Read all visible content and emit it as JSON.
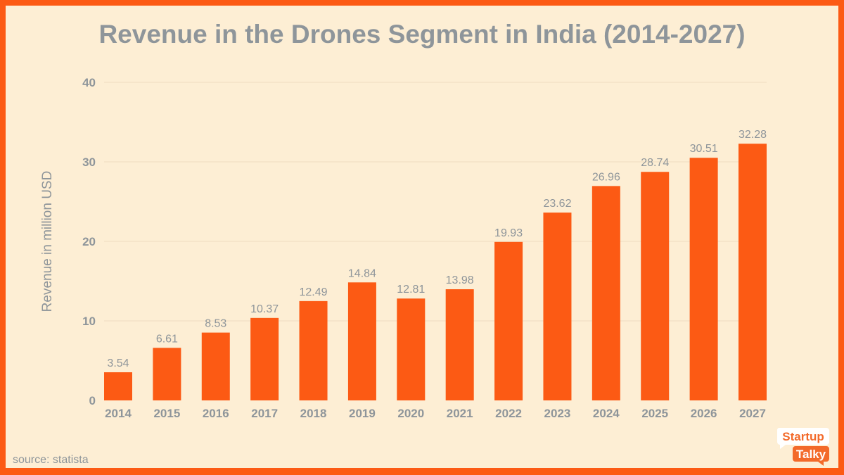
{
  "chart_data": {
    "type": "bar",
    "title": "Revenue in the Drones Segment in India (2014-2027)",
    "xlabel": "",
    "ylabel": "Revenue in million USD",
    "ylim": [
      0,
      40
    ],
    "yticks": [
      0,
      10,
      20,
      30,
      40
    ],
    "grid": true,
    "categories": [
      "2014",
      "2015",
      "2016",
      "2017",
      "2018",
      "2019",
      "2020",
      "2021",
      "2022",
      "2023",
      "2024",
      "2025",
      "2026",
      "2027"
    ],
    "values": [
      3.54,
      6.61,
      8.53,
      10.37,
      12.49,
      14.84,
      12.81,
      13.98,
      19.93,
      23.62,
      26.96,
      28.74,
      30.51,
      32.28
    ],
    "bar_color": "#fc5a14",
    "data_labels": true
  },
  "source": "source: statista",
  "logo": {
    "line1": "Startup",
    "line2": "Talky"
  }
}
